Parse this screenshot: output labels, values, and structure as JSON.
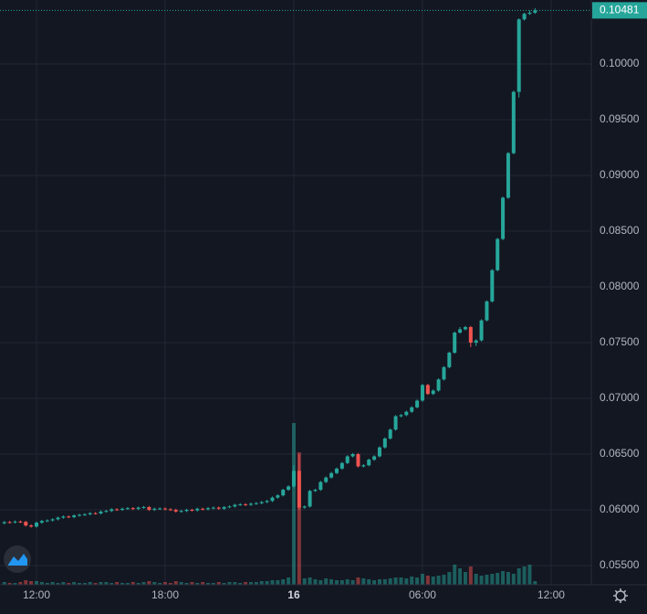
{
  "chart_data": {
    "type": "candlestick",
    "up_color": "#26a69a",
    "down_color": "#ef5350",
    "grid": true,
    "xlim": [
      -0.81,
      109.5
    ],
    "ylim": [
      0.05328,
      0.10574
    ],
    "xticks": [
      {
        "value": 6,
        "label": "12:00"
      },
      {
        "value": 30,
        "label": "18:00"
      },
      {
        "value": 54,
        "label": "16",
        "major": true
      },
      {
        "value": 78,
        "label": "06:00"
      },
      {
        "value": 102,
        "label": "12:00"
      }
    ],
    "yticks": [
      {
        "value": 0.055,
        "label": "0.05500"
      },
      {
        "value": 0.06,
        "label": "0.06000"
      },
      {
        "value": 0.065,
        "label": "0.06500"
      },
      {
        "value": 0.07,
        "label": "0.07000"
      },
      {
        "value": 0.075,
        "label": "0.07500"
      },
      {
        "value": 0.08,
        "label": "0.08000"
      },
      {
        "value": 0.085,
        "label": "0.08500"
      },
      {
        "value": 0.09,
        "label": "0.09000"
      },
      {
        "value": 0.095,
        "label": "0.09500"
      },
      {
        "value": 0.1,
        "label": "0.10000"
      }
    ],
    "last_price": {
      "value": 0.10481,
      "label": "0.10481"
    },
    "open": [
      0.0588,
      0.0589,
      0.05888,
      0.05895,
      0.05892,
      0.0586,
      0.0585,
      0.05885,
      0.059,
      0.05905,
      0.05915,
      0.0593,
      0.0594,
      0.05935,
      0.0595,
      0.05955,
      0.0596,
      0.0597,
      0.05968,
      0.05985,
      0.0599,
      0.06005,
      0.06,
      0.0601,
      0.06015,
      0.06008,
      0.0602,
      0.06025,
      0.06,
      0.0601,
      0.06012,
      0.06005,
      0.06,
      0.05985,
      0.0599,
      0.06,
      0.05995,
      0.0601,
      0.06005,
      0.06015,
      0.0602,
      0.0601,
      0.06025,
      0.0603,
      0.06045,
      0.0605,
      0.06045,
      0.06055,
      0.0606,
      0.0607,
      0.0608,
      0.0611,
      0.0613,
      0.0618,
      0.0621,
      0.0635,
      0.0602,
      0.0603,
      0.0617,
      0.0618,
      0.0625,
      0.0629,
      0.0633,
      0.0637,
      0.0642,
      0.0648,
      0.065,
      0.0639,
      0.064,
      0.0645,
      0.0648,
      0.0656,
      0.0664,
      0.0672,
      0.0684,
      0.0685,
      0.0688,
      0.0692,
      0.0698,
      0.0712,
      0.0704,
      0.0707,
      0.0717,
      0.0728,
      0.0741,
      0.0759,
      0.0762,
      0.0764,
      0.075,
      0.0752,
      0.077,
      0.0787,
      0.0815,
      0.0843,
      0.088,
      0.092,
      0.0975,
      0.104,
      0.1045,
      0.1046
    ],
    "high": [
      0.059,
      0.059,
      0.05905,
      0.05905,
      0.05902,
      0.0587,
      0.05895,
      0.0591,
      0.05915,
      0.05925,
      0.0594,
      0.0595,
      0.0595,
      0.0596,
      0.05965,
      0.0597,
      0.0598,
      0.0598,
      0.05995,
      0.06,
      0.06015,
      0.06015,
      0.0602,
      0.06025,
      0.06025,
      0.0603,
      0.06035,
      0.06035,
      0.0602,
      0.06022,
      0.06022,
      0.06015,
      0.0601,
      0.06,
      0.0601,
      0.0601,
      0.0602,
      0.0602,
      0.06025,
      0.0603,
      0.0603,
      0.06035,
      0.0604,
      0.06055,
      0.0606,
      0.0606,
      0.06065,
      0.0607,
      0.0608,
      0.0609,
      0.0612,
      0.0614,
      0.0619,
      0.0622,
      0.064,
      0.065,
      0.0604,
      0.0618,
      0.0619,
      0.0626,
      0.063,
      0.0634,
      0.0638,
      0.0643,
      0.0649,
      0.0651,
      0.0651,
      0.0641,
      0.0646,
      0.0649,
      0.0657,
      0.0665,
      0.0673,
      0.0685,
      0.0686,
      0.0689,
      0.0693,
      0.0699,
      0.0713,
      0.0713,
      0.0708,
      0.0718,
      0.0729,
      0.0742,
      0.076,
      0.0764,
      0.0765,
      0.0765,
      0.0753,
      0.0771,
      0.0788,
      0.0816,
      0.0844,
      0.0881,
      0.0921,
      0.0976,
      0.1041,
      0.1046,
      0.1048,
      0.105
    ],
    "low": [
      0.0587,
      0.05878,
      0.05878,
      0.05882,
      0.0585,
      0.0584,
      0.0584,
      0.05875,
      0.0589,
      0.05895,
      0.05905,
      0.0592,
      0.05925,
      0.05925,
      0.0594,
      0.05945,
      0.0595,
      0.05958,
      0.05958,
      0.05975,
      0.0598,
      0.0599,
      0.0599,
      0.06,
      0.05998,
      0.05998,
      0.0601,
      0.0599,
      0.0599,
      0.06,
      0.05995,
      0.0599,
      0.05975,
      0.05975,
      0.0598,
      0.05985,
      0.05985,
      0.05995,
      0.05995,
      0.06005,
      0.06,
      0.06,
      0.06015,
      0.0602,
      0.06035,
      0.06035,
      0.06035,
      0.06045,
      0.0605,
      0.0606,
      0.0607,
      0.061,
      0.0612,
      0.0617,
      0.062,
      0.06,
      0.0601,
      0.0602,
      0.0616,
      0.0617,
      0.0624,
      0.0628,
      0.0632,
      0.0636,
      0.0641,
      0.0647,
      0.0638,
      0.0638,
      0.0639,
      0.0644,
      0.0647,
      0.0655,
      0.0663,
      0.0671,
      0.0683,
      0.0684,
      0.0687,
      0.0691,
      0.0697,
      0.0703,
      0.0703,
      0.0706,
      0.0716,
      0.0727,
      0.074,
      0.0758,
      0.0761,
      0.0746,
      0.0747,
      0.0751,
      0.0769,
      0.0786,
      0.0814,
      0.0842,
      0.0879,
      0.0919,
      0.097,
      0.1039,
      0.1044,
      0.1045
    ],
    "close": [
      0.0589,
      0.05888,
      0.05895,
      0.05892,
      0.0586,
      0.0585,
      0.05885,
      0.059,
      0.05905,
      0.05915,
      0.0593,
      0.0594,
      0.05935,
      0.0595,
      0.05955,
      0.0596,
      0.0597,
      0.05968,
      0.05985,
      0.0599,
      0.06005,
      0.06,
      0.0601,
      0.06015,
      0.06008,
      0.0602,
      0.06025,
      0.06,
      0.0601,
      0.06012,
      0.06005,
      0.06,
      0.05985,
      0.0599,
      0.06,
      0.05995,
      0.0601,
      0.06005,
      0.06015,
      0.0602,
      0.0601,
      0.06025,
      0.0603,
      0.06045,
      0.0605,
      0.06045,
      0.06055,
      0.0606,
      0.0607,
      0.0608,
      0.0611,
      0.0613,
      0.0618,
      0.0621,
      0.0635,
      0.0602,
      0.0603,
      0.0617,
      0.0618,
      0.0625,
      0.0629,
      0.0633,
      0.0637,
      0.0642,
      0.0648,
      0.065,
      0.0639,
      0.064,
      0.0645,
      0.0648,
      0.0656,
      0.0664,
      0.0672,
      0.0684,
      0.0685,
      0.0688,
      0.0692,
      0.0698,
      0.0712,
      0.0704,
      0.0707,
      0.0717,
      0.0728,
      0.0741,
      0.0759,
      0.0762,
      0.0764,
      0.075,
      0.0752,
      0.077,
      0.0787,
      0.0815,
      0.0843,
      0.088,
      0.092,
      0.0975,
      0.104,
      0.1045,
      0.1046,
      0.10481
    ],
    "volume": [
      3,
      2,
      2,
      3,
      5,
      4,
      4,
      3,
      2,
      3,
      2,
      3,
      2,
      3,
      2,
      2,
      3,
      2,
      3,
      3,
      2,
      3,
      2,
      2,
      3,
      2,
      3,
      4,
      3,
      2,
      3,
      2,
      4,
      3,
      2,
      3,
      2,
      3,
      2,
      2,
      3,
      2,
      3,
      3,
      2,
      3,
      3,
      3,
      4,
      4,
      5,
      5,
      6,
      8,
      177,
      145,
      7,
      8,
      6,
      5,
      7,
      6,
      5,
      5,
      6,
      5,
      8,
      7,
      6,
      5,
      6,
      6,
      7,
      8,
      8,
      7,
      9,
      8,
      12,
      10,
      9,
      10,
      11,
      14,
      22,
      18,
      14,
      20,
      12,
      10,
      11,
      12,
      13,
      15,
      14,
      12,
      18,
      20,
      22,
      4
    ]
  }
}
